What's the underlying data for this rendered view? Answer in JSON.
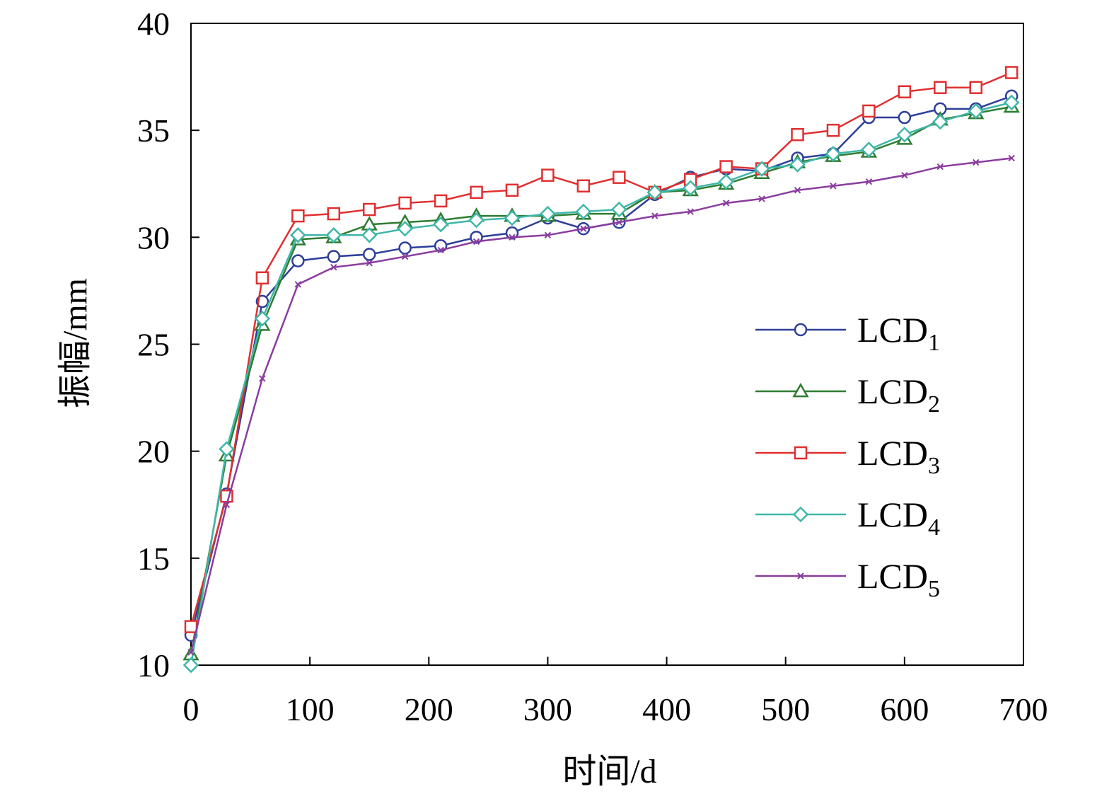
{
  "chart_data": {
    "type": "line",
    "xlabel": "时间/d",
    "ylabel": "振幅/mm",
    "xlim": [
      0,
      700
    ],
    "ylim": [
      10,
      40
    ],
    "xticks": [
      0,
      100,
      200,
      300,
      400,
      500,
      600,
      700
    ],
    "yticks": [
      10,
      15,
      20,
      25,
      30,
      35,
      40
    ],
    "grid": false,
    "legend_position": "right-middle",
    "x": [
      0,
      30,
      60,
      90,
      120,
      150,
      180,
      210,
      240,
      270,
      300,
      330,
      360,
      390,
      420,
      450,
      480,
      510,
      540,
      570,
      600,
      630,
      660,
      690
    ],
    "series": [
      {
        "name": "LCD1",
        "label_main": "LCD",
        "label_sub": "1",
        "color": "#2e3f9a",
        "marker": "circle",
        "values": [
          11.4,
          18.0,
          27.0,
          28.9,
          29.1,
          29.2,
          29.5,
          29.6,
          30.0,
          30.2,
          30.9,
          30.4,
          30.7,
          32.0,
          32.8,
          33.2,
          33.1,
          33.7,
          33.9,
          35.6,
          35.6,
          36.0,
          36.0,
          36.6
        ]
      },
      {
        "name": "LCD2",
        "label_main": "LCD",
        "label_sub": "2",
        "color": "#2e7d32",
        "marker": "triangle",
        "values": [
          10.5,
          19.8,
          25.9,
          29.9,
          30.0,
          30.6,
          30.7,
          30.8,
          31.0,
          31.0,
          31.0,
          31.1,
          31.1,
          32.1,
          32.2,
          32.5,
          33.0,
          33.5,
          33.8,
          34.0,
          34.6,
          35.5,
          35.8,
          36.1
        ]
      },
      {
        "name": "LCD3",
        "label_main": "LCD",
        "label_sub": "3",
        "color": "#e03030",
        "marker": "square",
        "values": [
          11.8,
          17.9,
          28.1,
          31.0,
          31.1,
          31.3,
          31.6,
          31.7,
          32.1,
          32.2,
          32.9,
          32.4,
          32.8,
          32.1,
          32.7,
          33.3,
          33.2,
          34.8,
          35.0,
          35.9,
          36.8,
          37.0,
          37.0,
          37.7
        ]
      },
      {
        "name": "LCD4",
        "label_main": "LCD",
        "label_sub": "4",
        "color": "#3fb7a8",
        "marker": "diamond",
        "values": [
          10.0,
          20.1,
          26.2,
          30.1,
          30.1,
          30.1,
          30.4,
          30.6,
          30.8,
          30.9,
          31.1,
          31.2,
          31.3,
          32.1,
          32.3,
          32.6,
          33.2,
          33.4,
          33.9,
          34.1,
          34.8,
          35.4,
          35.9,
          36.3
        ]
      },
      {
        "name": "LCD5",
        "label_main": "LCD",
        "label_sub": "5",
        "color": "#8a3d9e",
        "marker": "x",
        "values": [
          10.6,
          17.5,
          23.4,
          27.8,
          28.6,
          28.8,
          29.1,
          29.4,
          29.8,
          30.0,
          30.1,
          30.4,
          30.7,
          31.0,
          31.2,
          31.6,
          31.8,
          32.2,
          32.4,
          32.6,
          32.9,
          33.3,
          33.5,
          33.7
        ]
      }
    ]
  }
}
